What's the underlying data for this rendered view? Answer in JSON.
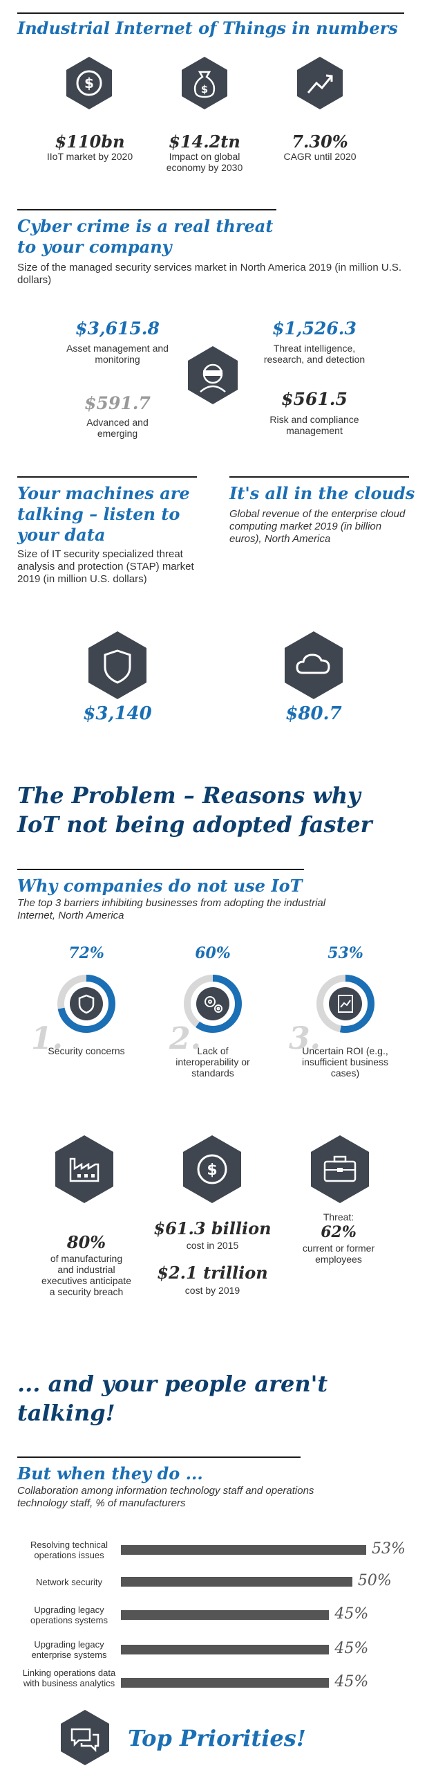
{
  "section1": {
    "title": "Industrial Internet of Things in numbers",
    "stats": [
      {
        "icon": "dollar-coin-icon",
        "value": "$110bn",
        "label": "IIoT market by 2020"
      },
      {
        "icon": "money-bag-icon",
        "value": "$14.2tn",
        "label": "Impact on global economy by 2030"
      },
      {
        "icon": "trend-up-icon",
        "value": "7.30%",
        "label": "CAGR until 2020"
      }
    ]
  },
  "section2": {
    "title_line1": "Cyber crime is a real threat",
    "title_line2": "to your company",
    "subtitle": "Size of the managed security services market in North America 2019 (in million U.S. dollars)",
    "items": [
      {
        "value": "$3,615.8",
        "label": "Asset management and monitoring"
      },
      {
        "value": "$1,526.3",
        "label": "Threat intelligence, research, and detection"
      },
      {
        "value": "$591.7",
        "label": "Advanced and emerging"
      },
      {
        "value": "$561.5",
        "label": "Risk and compliance management"
      }
    ],
    "icon": "burglar-icon"
  },
  "section3": {
    "left_title": "Your machines are talking – listen to your data",
    "left_subtitle": "Size of IT security specialized threat analysis and protection (STAP) market 2019 (in million U.S. dollars)",
    "left_value": "$3,140",
    "left_icon": "shield-icon",
    "right_title": "It's all in the clouds",
    "right_subtitle": "Global revenue of the enterprise cloud computing market 2019 (in billion euros), North America",
    "right_value": "$80.7",
    "right_icon": "cloud-icon"
  },
  "problem": {
    "title_line1": "The Problem – Reasons why",
    "title_line2": "IoT not being adopted faster"
  },
  "barriers": {
    "title": "Why companies do not use IoT",
    "subtitle": "The top 3 barriers inhibiting businesses from adopting the industrial Internet, North America",
    "items": [
      {
        "rank": "1.",
        "percent": "72%",
        "fraction": 0.72,
        "label": "Security concerns",
        "icon": "shield-icon"
      },
      {
        "rank": "2.",
        "percent": "60%",
        "fraction": 0.6,
        "label": "Lack of interoperability or standards",
        "icon": "gears-icon"
      },
      {
        "rank": "3.",
        "percent": "53%",
        "fraction": 0.53,
        "label": "Uncertain ROI (e.g., insufficient business cases)",
        "icon": "document-chart-icon"
      }
    ]
  },
  "impact": {
    "items": [
      {
        "icon": "factory-icon",
        "value": "80%",
        "label": "of manufacturing and industrial executives anticipate a security breach"
      },
      {
        "icon": "dollar-coin-icon",
        "value": "$61.3 billion",
        "label": "cost in 2015",
        "value2": "$2.1 trillion",
        "label2": "cost by 2019"
      },
      {
        "icon": "briefcase-icon",
        "pre": "Threat:",
        "value": "62%",
        "label": "current or former employees"
      }
    ]
  },
  "people": {
    "title_line1": "... and your people aren't",
    "title_line2": "talking!"
  },
  "collab": {
    "title": "But when they do ...",
    "subtitle": "Collaboration among information technology staff and operations technology staff, % of manufacturers"
  },
  "chart_data": {
    "type": "bar",
    "orientation": "horizontal",
    "categories": [
      "Resolving technical operations issues",
      "Network security",
      "Upgrading legacy operations systems",
      "Upgrading legacy enterprise systems",
      "Linking operations data with business analytics"
    ],
    "values": [
      53,
      50,
      45,
      45,
      45
    ],
    "value_labels": [
      "53%",
      "50%",
      "45%",
      "45%",
      "45%"
    ]
  },
  "footer": {
    "icon": "chat-bubbles-icon",
    "title": "Top Priorities!"
  },
  "colors": {
    "accent": "#1a6fb5",
    "navy": "#0d3f6e",
    "hex_dark": "#3f4650",
    "bar": "#555555",
    "ring_bg": "#d8d8d8"
  }
}
